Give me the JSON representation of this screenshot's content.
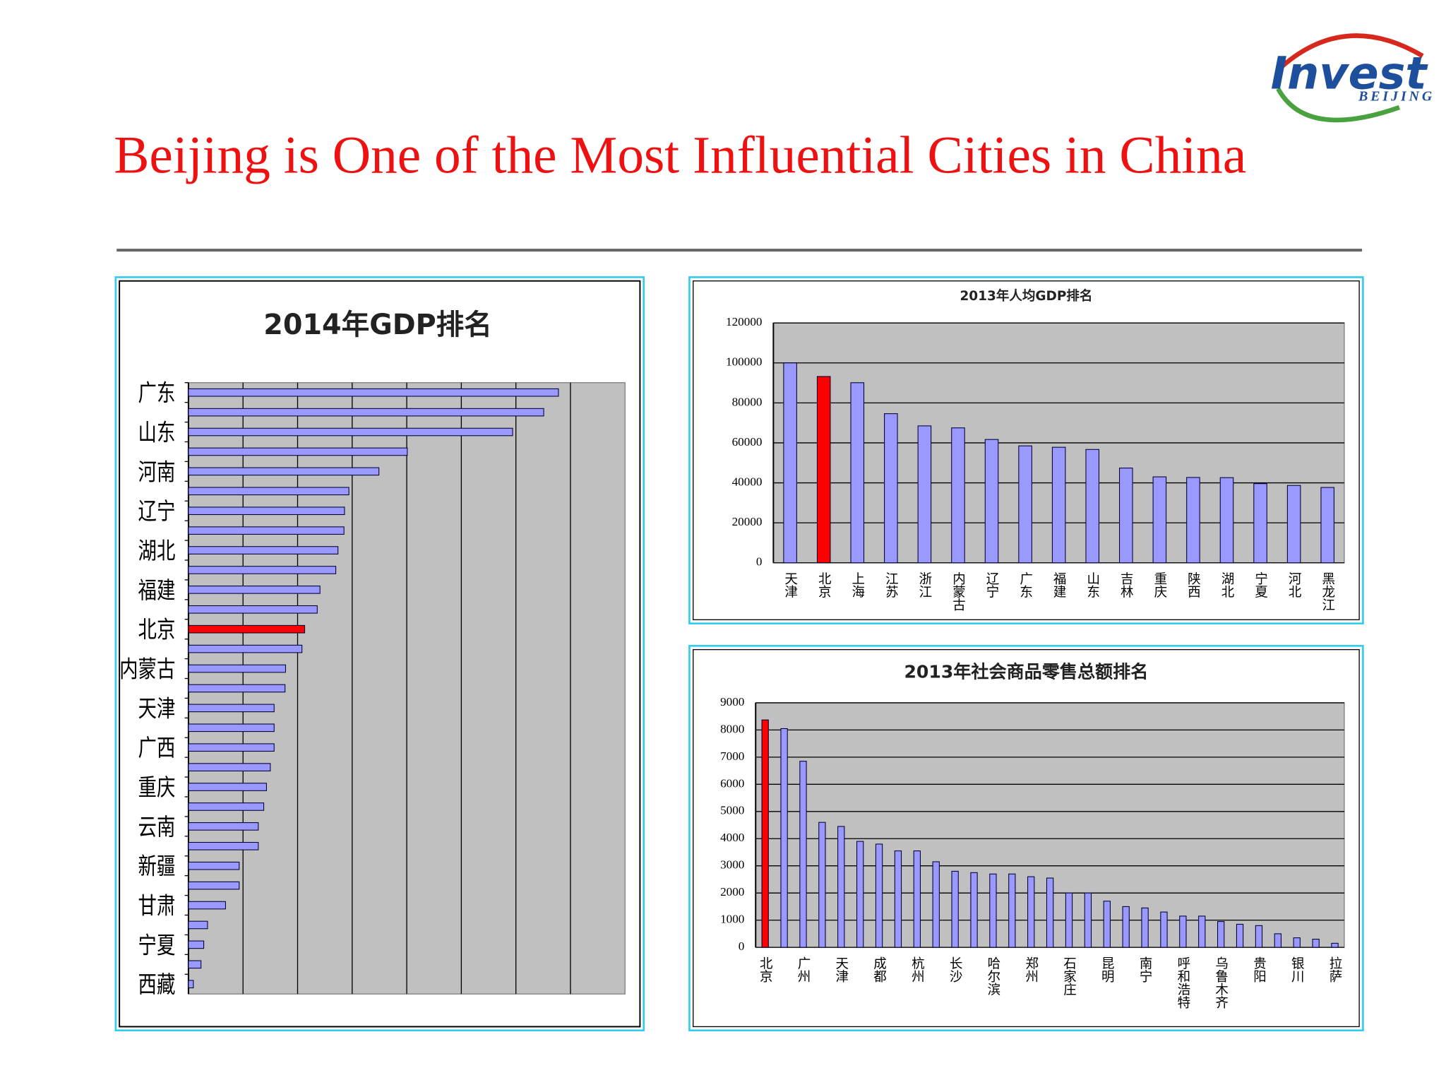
{
  "slide": {
    "title": "Beijing is One of the Most Influential Cities in China",
    "logo": {
      "word": "Invest",
      "sub": "BEIJING"
    }
  },
  "chart_data": [
    {
      "type": "hbar",
      "title": "2014年GDP排名",
      "categories": [
        "广东",
        null,
        "山东",
        null,
        "河南",
        null,
        "辽宁",
        null,
        "湖北",
        null,
        "福建",
        null,
        "北京",
        null,
        "内蒙古",
        null,
        "天津",
        null,
        "广西",
        null,
        "重庆",
        null,
        "云南",
        null,
        "新疆",
        null,
        "甘肃",
        null,
        "宁夏",
        null,
        "西藏"
      ],
      "values": [
        67800,
        65100,
        59400,
        40100,
        34900,
        29400,
        28600,
        28500,
        27400,
        27000,
        24100,
        23600,
        21300,
        20800,
        17800,
        17700,
        15700,
        15700,
        15700,
        15000,
        14300,
        13800,
        12800,
        12800,
        9300,
        9300,
        6800,
        3500,
        2800,
        2300,
        900
      ],
      "xlim": [
        0,
        80000
      ],
      "color": "#9999ff",
      "highlight_category": "北京",
      "highlight_color": "#ff0000",
      "grid": true
    },
    {
      "type": "vbar",
      "title": "2013年人均GDP排名",
      "categories": [
        "天津",
        "北京",
        "上海",
        "江苏",
        "浙江",
        "内蒙古",
        "辽宁",
        "广东",
        "福建",
        "山东",
        "吉林",
        "重庆",
        "陕西",
        "湖北",
        "宁夏",
        "河北",
        "黑龙江"
      ],
      "values": [
        100000,
        93200,
        90100,
        74600,
        68500,
        67500,
        61700,
        58500,
        57800,
        56700,
        47400,
        43000,
        42700,
        42600,
        39600,
        38700,
        37700
      ],
      "ylim": [
        0,
        120000
      ],
      "yticks": [
        0,
        20000,
        40000,
        60000,
        80000,
        100000,
        120000
      ],
      "color": "#9999ff",
      "highlight_category": "北京",
      "highlight_color": "#ff0000",
      "grid": true
    },
    {
      "type": "vbar",
      "title": "2013年社会商品零售总额排名",
      "categories": [
        "北京",
        null,
        "广州",
        null,
        "天津",
        null,
        "成都",
        null,
        "杭州",
        null,
        "长沙",
        null,
        "哈尔滨",
        null,
        "郑州",
        null,
        "石家庄",
        null,
        "昆明",
        null,
        "南宁",
        null,
        "呼和浩特",
        null,
        "乌鲁木齐",
        null,
        "贵阳",
        null,
        "银川",
        null,
        "拉萨"
      ],
      "values": [
        8370,
        8050,
        6850,
        4600,
        4450,
        3900,
        3800,
        3550,
        3550,
        3150,
        2800,
        2750,
        2700,
        2700,
        2600,
        2550,
        2000,
        2000,
        1700,
        1500,
        1450,
        1300,
        1150,
        1150,
        950,
        850,
        800,
        500,
        350,
        300,
        150
      ],
      "ylim": [
        0,
        9000
      ],
      "yticks": [
        0,
        1000,
        2000,
        3000,
        4000,
        5000,
        6000,
        7000,
        8000,
        9000
      ],
      "color": "#9999ff",
      "highlight_category": "北京",
      "highlight_color": "#ff0000",
      "grid": true
    }
  ]
}
